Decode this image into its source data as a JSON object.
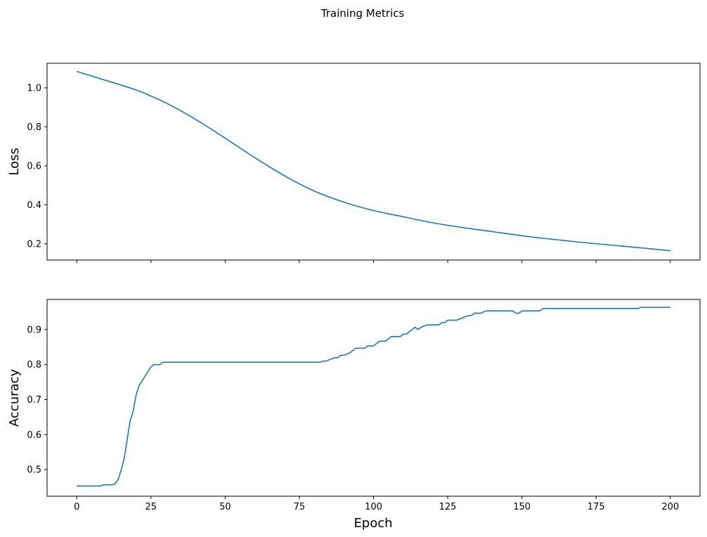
{
  "chart_data": [
    {
      "type": "line",
      "suptitle": "Training Metrics",
      "xlabel": "",
      "ylabel": "Loss",
      "xlim": [
        -10,
        210
      ],
      "ylim": [
        0.117,
        1.126
      ],
      "xticks": [
        0,
        25,
        50,
        75,
        100,
        125,
        150,
        175,
        200
      ],
      "xtick_labels_visible": false,
      "yticks": [
        0.2,
        0.4,
        0.6,
        0.8,
        1.0
      ],
      "ytick_labels": [
        "0.2",
        "0.4",
        "0.6",
        "0.8",
        "1.0"
      ],
      "grid": false,
      "color": "#1f77b4",
      "x": [
        0,
        10,
        20,
        30,
        40,
        50,
        60,
        70,
        80,
        90,
        100,
        110,
        120,
        130,
        140,
        150,
        160,
        170,
        180,
        190,
        200
      ],
      "y": [
        1.084,
        1.037,
        0.989,
        0.923,
        0.839,
        0.742,
        0.642,
        0.549,
        0.471,
        0.414,
        0.371,
        0.339,
        0.308,
        0.284,
        0.263,
        0.242,
        0.224,
        0.208,
        0.194,
        0.18,
        0.165
      ]
    },
    {
      "type": "line",
      "xlabel": "Epoch",
      "ylabel": "Accuracy",
      "xlim": [
        -10,
        210
      ],
      "ylim": [
        0.424,
        0.986
      ],
      "xticks": [
        0,
        25,
        50,
        75,
        100,
        125,
        150,
        175,
        200
      ],
      "xtick_labels": [
        "0",
        "25",
        "50",
        "75",
        "100",
        "125",
        "150",
        "175",
        "200"
      ],
      "yticks": [
        0.5,
        0.6,
        0.7,
        0.8,
        0.9
      ],
      "ytick_labels": [
        "0.5",
        "0.6",
        "0.7",
        "0.8",
        "0.9"
      ],
      "grid": false,
      "color": "#1f77b4",
      "x": [
        0,
        8,
        9,
        12,
        13,
        14,
        15,
        16,
        17,
        18,
        19,
        20,
        21,
        22,
        23,
        24,
        25,
        26,
        28,
        29,
        82,
        83,
        84,
        85,
        86,
        87,
        88,
        89,
        90,
        91,
        92,
        93,
        94,
        97,
        98,
        100,
        101,
        102,
        104,
        105,
        106,
        109,
        110,
        111,
        112,
        113,
        114,
        115,
        116,
        118,
        122,
        123,
        124,
        125,
        128,
        130,
        132,
        133,
        134,
        136,
        138,
        147,
        148,
        149,
        150,
        156,
        157,
        189,
        190,
        200
      ],
      "y": [
        0.4533,
        0.4533,
        0.4567,
        0.4567,
        0.46,
        0.4733,
        0.5,
        0.5333,
        0.5867,
        0.64,
        0.6667,
        0.7133,
        0.74,
        0.7533,
        0.7667,
        0.78,
        0.7933,
        0.8,
        0.8,
        0.8067,
        0.8067,
        0.81,
        0.81,
        0.8133,
        0.8167,
        0.82,
        0.82,
        0.8267,
        0.8267,
        0.83,
        0.8333,
        0.84,
        0.8467,
        0.8467,
        0.8533,
        0.8533,
        0.86,
        0.8667,
        0.8667,
        0.8733,
        0.88,
        0.88,
        0.8867,
        0.8867,
        0.8933,
        0.9,
        0.9067,
        0.9,
        0.9067,
        0.9133,
        0.9133,
        0.92,
        0.92,
        0.9267,
        0.9267,
        0.9333,
        0.94,
        0.94,
        0.9467,
        0.9467,
        0.9533,
        0.9533,
        0.9467,
        0.9467,
        0.9533,
        0.9533,
        0.96,
        0.96,
        0.9633,
        0.9633
      ]
    }
  ]
}
